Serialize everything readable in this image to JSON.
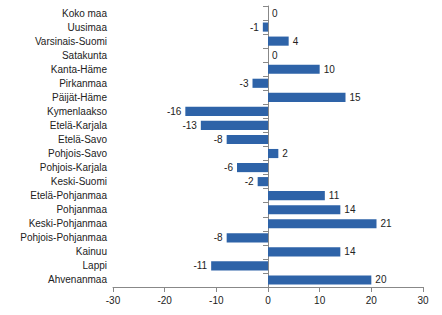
{
  "chart_data": {
    "type": "bar",
    "orientation": "horizontal",
    "categories": [
      "Koko maa",
      "Uusimaa",
      "Varsinais-Suomi",
      "Satakunta",
      "Kanta-Häme",
      "Pirkanmaa",
      "Päijät-Häme",
      "Kymenlaakso",
      "Etelä-Karjala",
      "Etelä-Savo",
      "Pohjois-Savo",
      "Pohjois-Karjala",
      "Keski-Suomi",
      "Etelä-Pohjanmaa",
      "Pohjanmaa",
      "Keski-Pohjanmaa",
      "Pohjois-Pohjanmaa",
      "Kainuu",
      "Lappi",
      "Ahvenanmaa"
    ],
    "values": [
      0,
      -1,
      4,
      0,
      10,
      -3,
      15,
      -16,
      -13,
      -8,
      2,
      -6,
      -2,
      11,
      14,
      21,
      -8,
      14,
      -11,
      20
    ],
    "color": "#2e63a8",
    "xlim": [
      -30,
      30
    ],
    "xticks": [
      -30,
      -20,
      -10,
      0,
      10,
      20,
      30
    ],
    "grid": false,
    "data_labels": true
  }
}
